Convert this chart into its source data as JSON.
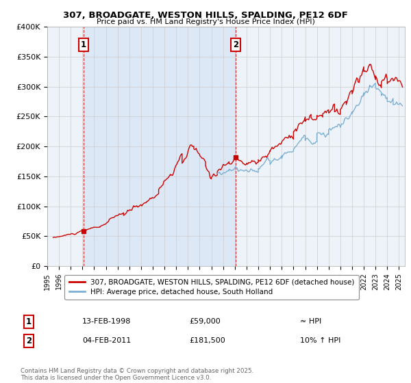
{
  "title": "307, BROADGATE, WESTON HILLS, SPALDING, PE12 6DF",
  "subtitle": "Price paid vs. HM Land Registry's House Price Index (HPI)",
  "ylim": [
    0,
    400000
  ],
  "yticks": [
    0,
    50000,
    100000,
    150000,
    200000,
    250000,
    300000,
    350000,
    400000
  ],
  "ytick_labels": [
    "£0",
    "£50K",
    "£100K",
    "£150K",
    "£200K",
    "£250K",
    "£300K",
    "£350K",
    "£400K"
  ],
  "red_color": "#cc0000",
  "blue_color": "#7bafd4",
  "annotation_box_color": "#cc0000",
  "grid_color": "#cccccc",
  "bg_color": "#ffffff",
  "chart_bg_color": "#eef3fa",
  "shade_color": "#dce8f5",
  "legend_label_red": "307, BROADGATE, WESTON HILLS, SPALDING, PE12 6DF (detached house)",
  "legend_label_blue": "HPI: Average price, detached house, South Holland",
  "footnote": "Contains HM Land Registry data © Crown copyright and database right 2025.\nThis data is licensed under the Open Government Licence v3.0.",
  "purchase1_date": "13-FEB-1998",
  "purchase1_price": "£59,000",
  "purchase1_hpi": "≈ HPI",
  "purchase2_date": "04-FEB-2011",
  "purchase2_price": "£181,500",
  "purchase2_hpi": "10% ↑ HPI",
  "purchase1_year": 1998.1,
  "purchase1_value": 59000,
  "purchase2_year": 2011.09,
  "purchase2_value": 181500,
  "xlim_left": 1995.3,
  "xlim_right": 2025.5
}
